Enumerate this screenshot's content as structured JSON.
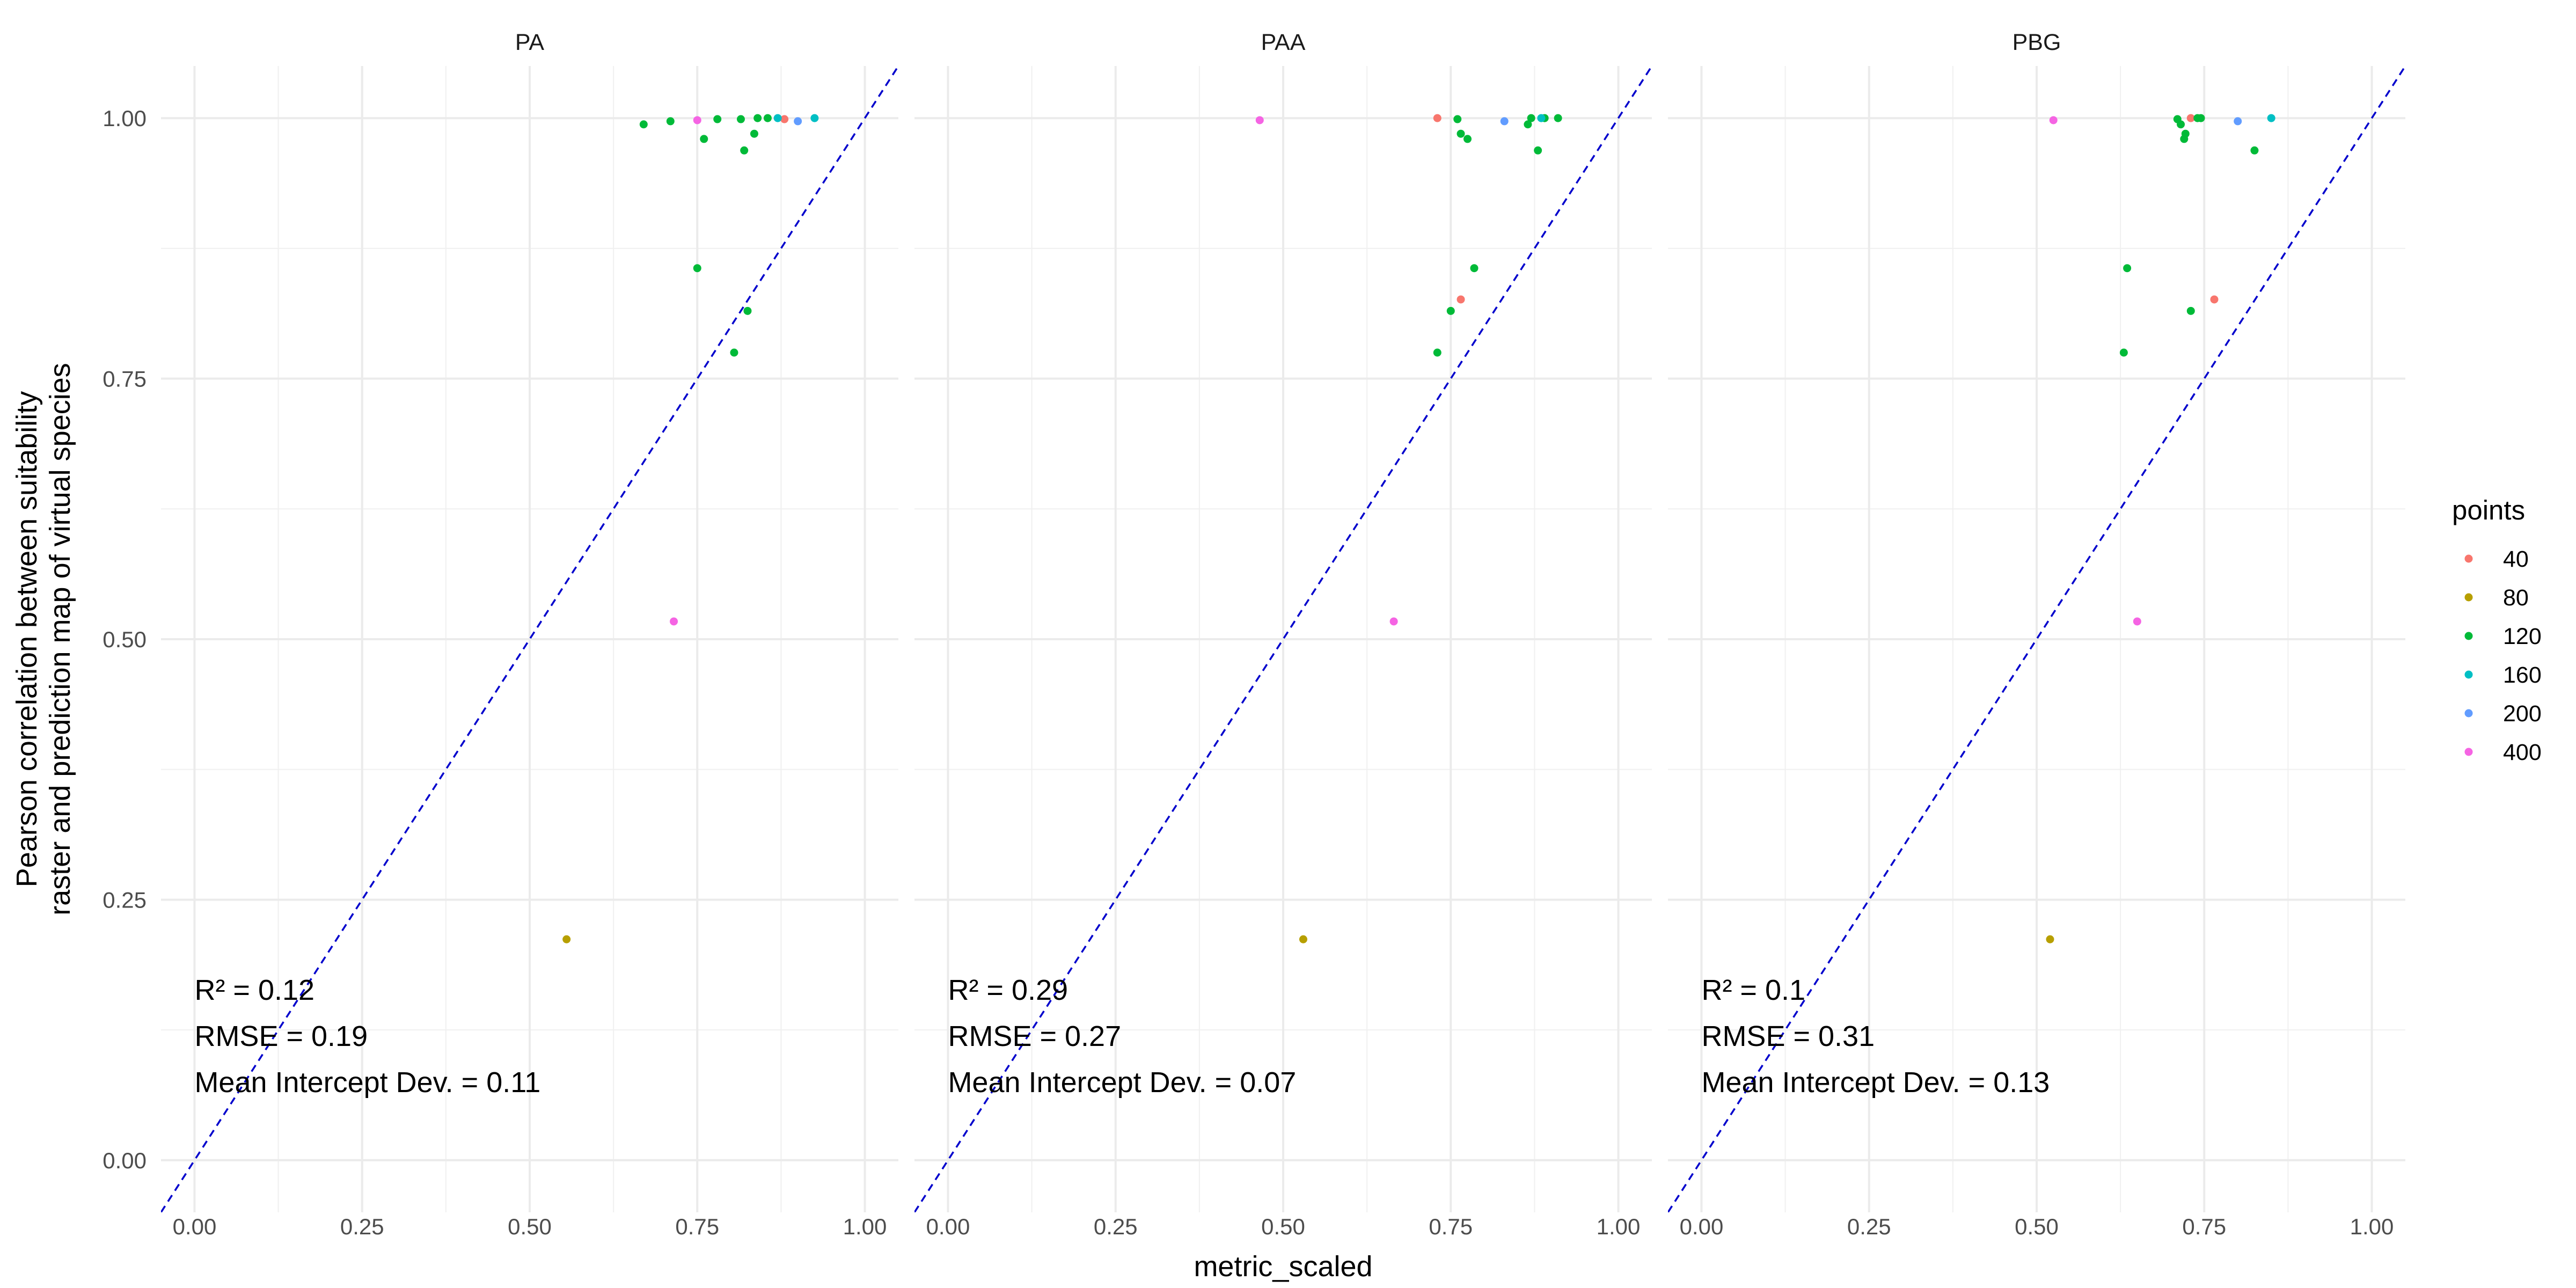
{
  "chart_data": {
    "type": "scatter",
    "xlabel": "metric_scaled",
    "ylabel_lines": [
      "Pearson correlation between suitability",
      "raster and prediction map of virtual species"
    ],
    "xlim": [
      -0.05,
      1.05
    ],
    "ylim": [
      -0.05,
      1.05
    ],
    "x_ticks": [
      0,
      0.25,
      0.5,
      0.75,
      1.0
    ],
    "x_tick_labels": [
      "0.00",
      "0.25",
      "0.50",
      "0.75",
      "1.00"
    ],
    "y_ticks": [
      0,
      0.25,
      0.5,
      0.75,
      1.0
    ],
    "y_tick_labels": [
      "0.00",
      "0.25",
      "0.50",
      "0.75",
      "1.00"
    ],
    "grid": true,
    "reference_line": {
      "slope": 1,
      "intercept": 0,
      "color": "#0000cc",
      "style": "dashed"
    },
    "legend": {
      "title": "points",
      "position": "right",
      "entries": [
        {
          "label": "40",
          "color": "#F8766D"
        },
        {
          "label": "80",
          "color": "#B79F00"
        },
        {
          "label": "120",
          "color": "#00BA38"
        },
        {
          "label": "160",
          "color": "#00BFC4"
        },
        {
          "label": "200",
          "color": "#619CFF"
        },
        {
          "label": "400",
          "color": "#F564E3"
        }
      ]
    },
    "panels": [
      {
        "title": "PA",
        "annotations": [
          "R² = 0.12",
          "RMSE = 0.19",
          "Mean Intercept Dev. = 0.11"
        ],
        "points": [
          {
            "x": 0.88,
            "y": 0.999,
            "group": "40"
          },
          {
            "x": 0.555,
            "y": 0.212,
            "group": "80"
          },
          {
            "x": 0.67,
            "y": 0.994,
            "group": "120"
          },
          {
            "x": 0.71,
            "y": 0.997,
            "group": "120"
          },
          {
            "x": 0.75,
            "y": 0.856,
            "group": "120"
          },
          {
            "x": 0.76,
            "y": 0.98,
            "group": "120"
          },
          {
            "x": 0.78,
            "y": 0.999,
            "group": "120"
          },
          {
            "x": 0.805,
            "y": 0.775,
            "group": "120"
          },
          {
            "x": 0.815,
            "y": 0.999,
            "group": "120"
          },
          {
            "x": 0.82,
            "y": 0.969,
            "group": "120"
          },
          {
            "x": 0.825,
            "y": 0.815,
            "group": "120"
          },
          {
            "x": 0.835,
            "y": 0.985,
            "group": "120"
          },
          {
            "x": 0.84,
            "y": 1.0,
            "group": "120"
          },
          {
            "x": 0.855,
            "y": 1.0,
            "group": "120"
          },
          {
            "x": 0.87,
            "y": 1.0,
            "group": "160"
          },
          {
            "x": 0.925,
            "y": 1.0,
            "group": "160"
          },
          {
            "x": 0.9,
            "y": 0.997,
            "group": "200"
          },
          {
            "x": 0.75,
            "y": 0.998,
            "group": "400"
          },
          {
            "x": 0.715,
            "y": 0.517,
            "group": "400"
          }
        ]
      },
      {
        "title": "PAA",
        "annotations": [
          "R² = 0.29",
          "RMSE = 0.27",
          "Mean Intercept Dev. = 0.07"
        ],
        "points": [
          {
            "x": 0.73,
            "y": 1.0,
            "group": "40"
          },
          {
            "x": 0.765,
            "y": 0.826,
            "group": "40"
          },
          {
            "x": 0.53,
            "y": 0.212,
            "group": "80"
          },
          {
            "x": 0.73,
            "y": 0.775,
            "group": "120"
          },
          {
            "x": 0.75,
            "y": 0.815,
            "group": "120"
          },
          {
            "x": 0.76,
            "y": 0.999,
            "group": "120"
          },
          {
            "x": 0.765,
            "y": 0.985,
            "group": "120"
          },
          {
            "x": 0.775,
            "y": 0.98,
            "group": "120"
          },
          {
            "x": 0.785,
            "y": 0.856,
            "group": "120"
          },
          {
            "x": 0.865,
            "y": 0.994,
            "group": "120"
          },
          {
            "x": 0.87,
            "y": 1.0,
            "group": "120"
          },
          {
            "x": 0.88,
            "y": 0.969,
            "group": "120"
          },
          {
            "x": 0.89,
            "y": 1.0,
            "group": "120"
          },
          {
            "x": 0.91,
            "y": 1.0,
            "group": "120"
          },
          {
            "x": 0.885,
            "y": 1.0,
            "group": "160"
          },
          {
            "x": 0.83,
            "y": 0.997,
            "group": "200"
          },
          {
            "x": 0.465,
            "y": 0.998,
            "group": "400"
          },
          {
            "x": 0.665,
            "y": 0.517,
            "group": "400"
          }
        ]
      },
      {
        "title": "PBG",
        "annotations": [
          "R² = 0.1",
          "RMSE = 0.31",
          "Mean Intercept Dev. = 0.13"
        ],
        "points": [
          {
            "x": 0.73,
            "y": 1.0,
            "group": "40"
          },
          {
            "x": 0.765,
            "y": 0.826,
            "group": "40"
          },
          {
            "x": 0.52,
            "y": 0.212,
            "group": "80"
          },
          {
            "x": 0.63,
            "y": 0.775,
            "group": "120"
          },
          {
            "x": 0.635,
            "y": 0.856,
            "group": "120"
          },
          {
            "x": 0.71,
            "y": 0.999,
            "group": "120"
          },
          {
            "x": 0.715,
            "y": 0.994,
            "group": "120"
          },
          {
            "x": 0.72,
            "y": 0.98,
            "group": "120"
          },
          {
            "x": 0.722,
            "y": 0.985,
            "group": "120"
          },
          {
            "x": 0.73,
            "y": 0.815,
            "group": "120"
          },
          {
            "x": 0.74,
            "y": 1.0,
            "group": "120"
          },
          {
            "x": 0.745,
            "y": 1.0,
            "group": "120"
          },
          {
            "x": 0.825,
            "y": 0.969,
            "group": "120"
          },
          {
            "x": 0.85,
            "y": 1.0,
            "group": "160"
          },
          {
            "x": 0.8,
            "y": 0.997,
            "group": "200"
          },
          {
            "x": 0.525,
            "y": 0.998,
            "group": "400"
          },
          {
            "x": 0.65,
            "y": 0.517,
            "group": "400"
          }
        ]
      }
    ]
  }
}
